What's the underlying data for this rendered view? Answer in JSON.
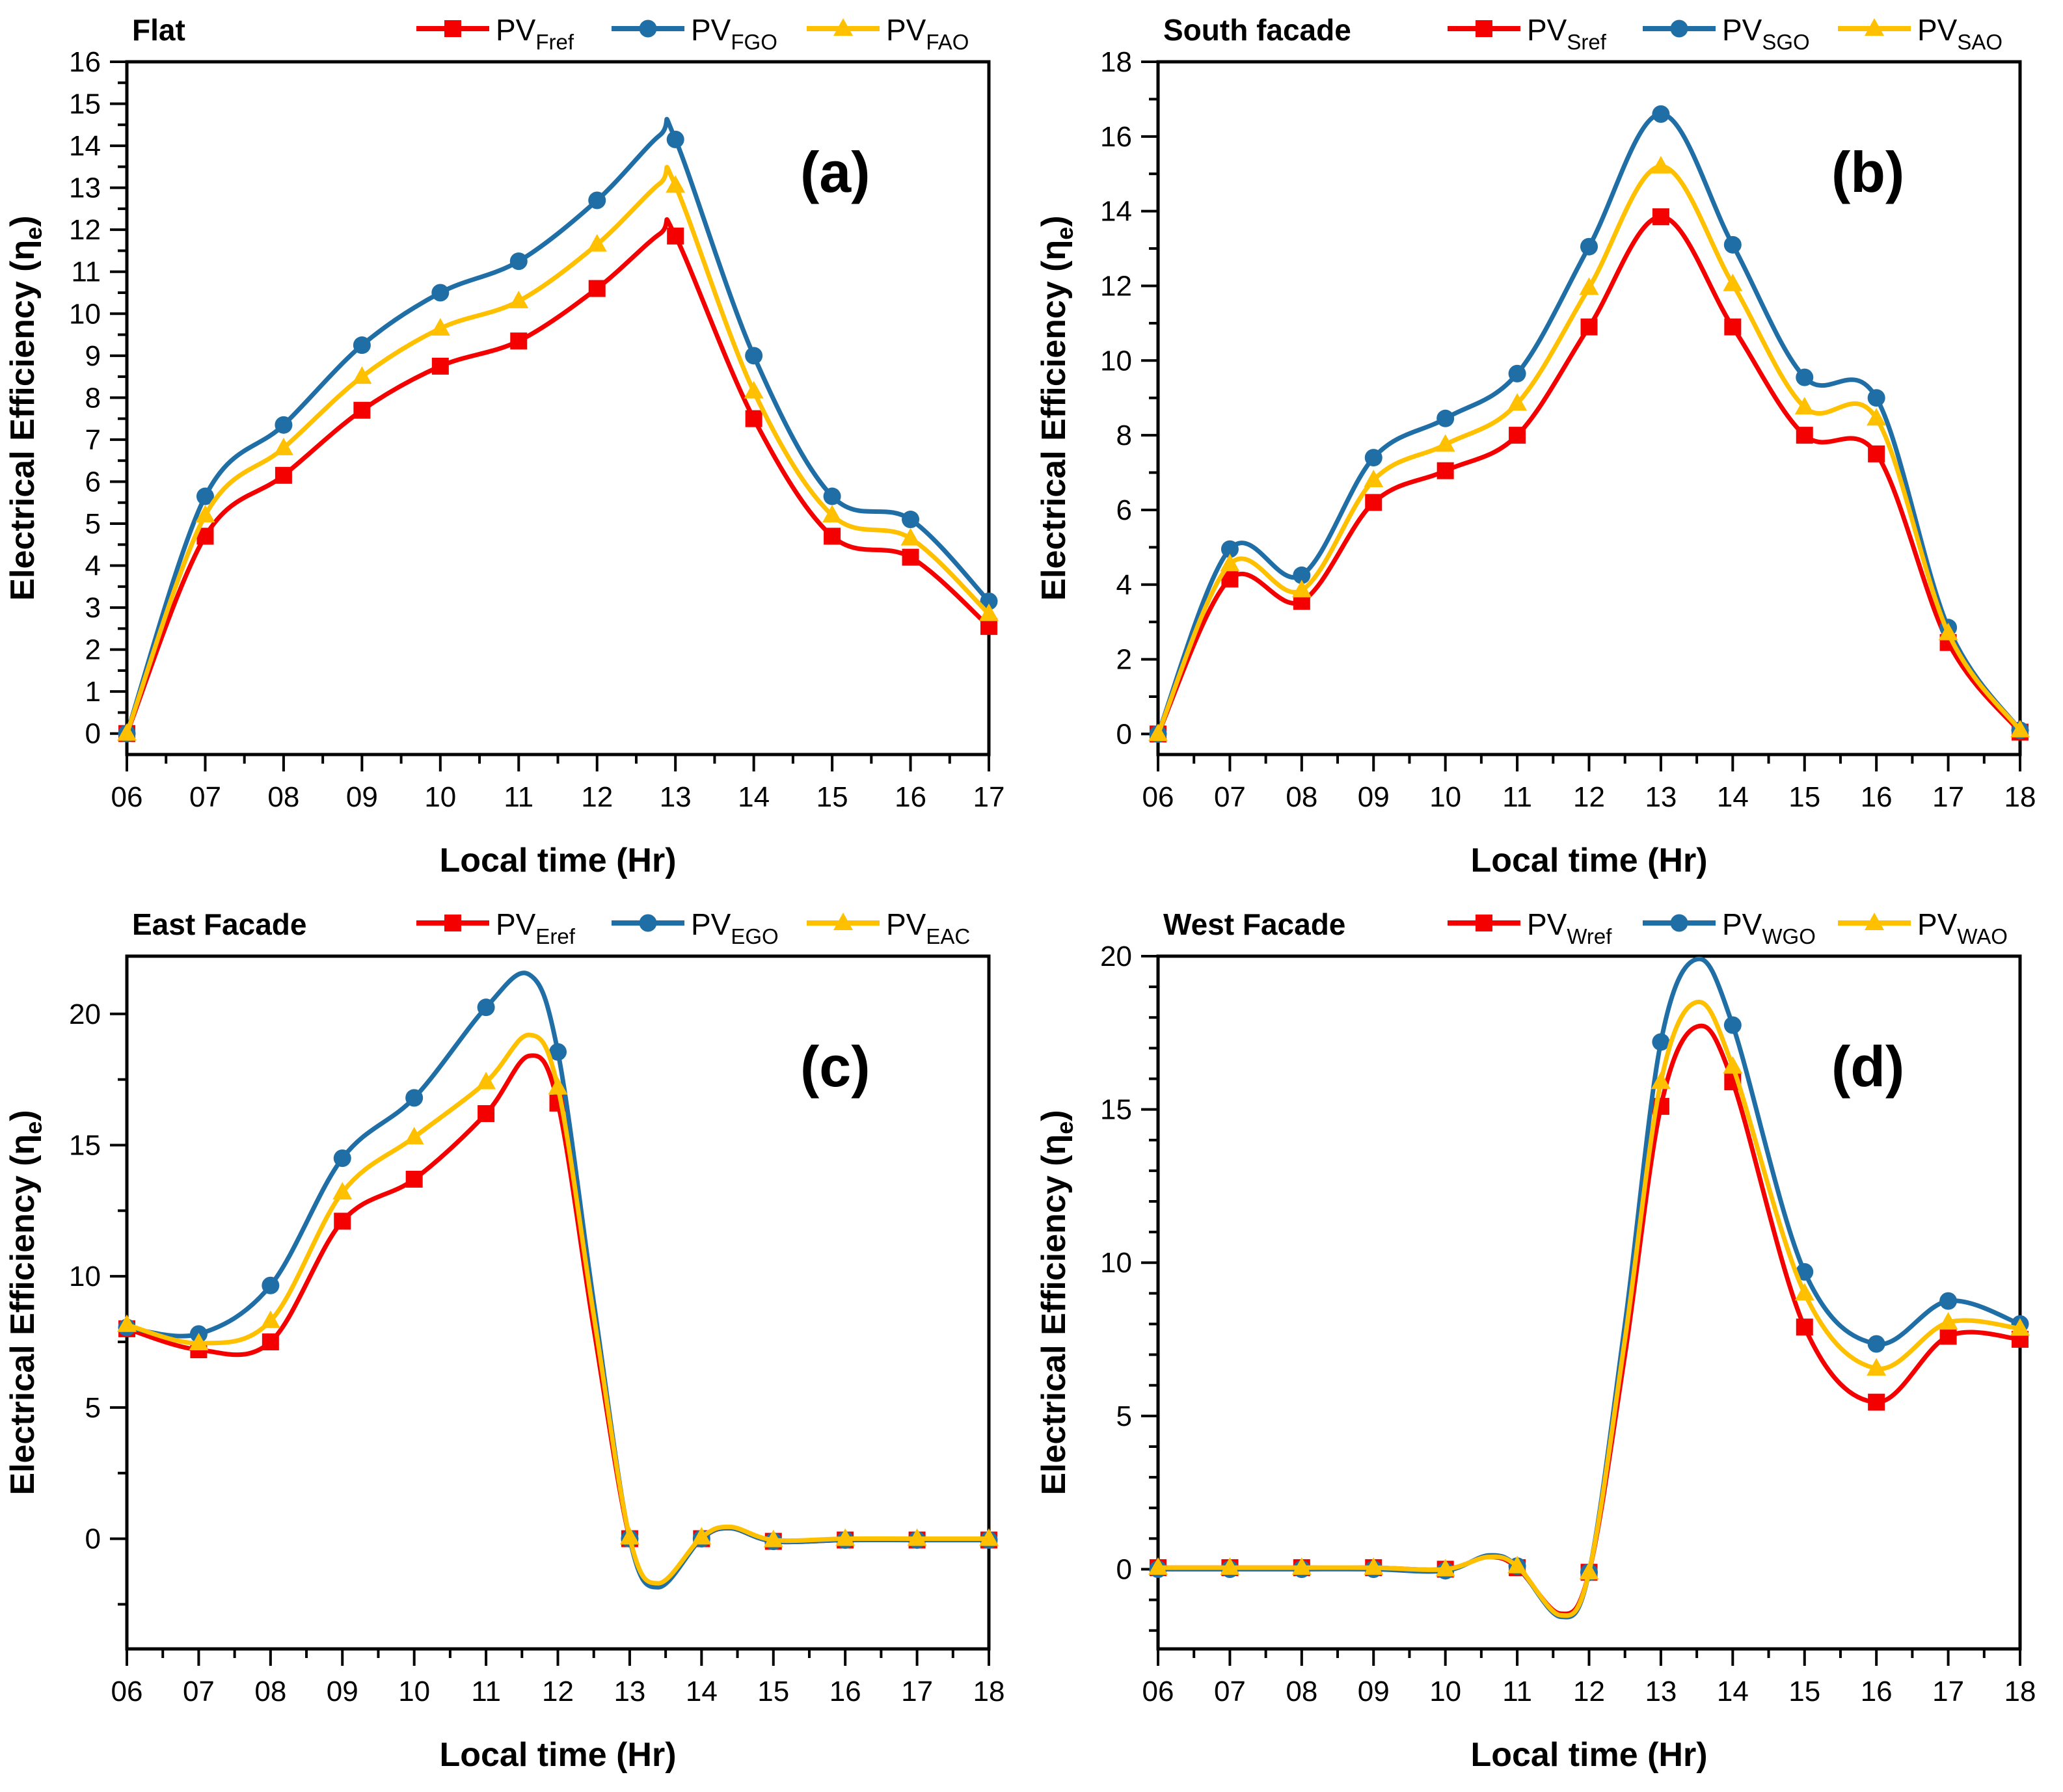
{
  "figure": {
    "background": "#ffffff",
    "colors": {
      "ref": "#F40000",
      "go": "#1F6EA5",
      "ao": "#FFC000",
      "axis": "#000000",
      "text": "#000000"
    }
  },
  "chart_data": [
    {
      "type": "line",
      "panel_label": "(a)",
      "title": "Flat",
      "xlabel": "Local time (Hr)",
      "ylabel_main": "Electrical Efficiency (η",
      "ylabel_sub": "e",
      "ylabel_close": ")",
      "xlim": [
        6,
        17
      ],
      "x_ticks": [
        6,
        7,
        8,
        9,
        10,
        11,
        12,
        13,
        14,
        15,
        16,
        17
      ],
      "x_tick_labels": [
        "06",
        "07",
        "08",
        "09",
        "10",
        "11",
        "12",
        "13",
        "14",
        "15",
        "16",
        "17"
      ],
      "x_minor_step": 0.5,
      "ylim": [
        0,
        16
      ],
      "y_draw": [
        -0.5,
        16
      ],
      "y_ticks": [
        0,
        1,
        2,
        3,
        4,
        5,
        6,
        7,
        8,
        9,
        10,
        11,
        12,
        13,
        14,
        15,
        16
      ],
      "y_minor_step": 0.5,
      "grid": false,
      "legend_position": "top",
      "series": [
        {
          "name": "PV_Fref",
          "legend_main": "PV",
          "legend_sub": "Fref",
          "color": "ref",
          "marker": "square",
          "x": [
            6,
            7,
            8,
            9,
            10,
            11,
            12,
            12.8,
            13,
            14,
            15,
            16,
            17
          ],
          "y": [
            0,
            4.7,
            6.15,
            7.7,
            8.75,
            9.35,
            10.6,
            11.9,
            11.85,
            7.5,
            4.7,
            4.2,
            2.55
          ]
        },
        {
          "name": "PV_FGO",
          "legend_main": "PV",
          "legend_sub": "FGO",
          "color": "go",
          "marker": "circle",
          "x": [
            6,
            7,
            8,
            9,
            10,
            11,
            12,
            12.8,
            13,
            14,
            15,
            16,
            17
          ],
          "y": [
            0,
            5.65,
            7.35,
            9.25,
            10.5,
            11.25,
            12.7,
            14.25,
            14.15,
            9.0,
            5.65,
            5.1,
            3.15
          ]
        },
        {
          "name": "PV_FAO",
          "legend_main": "PV",
          "legend_sub": "FAO",
          "color": "ao",
          "marker": "triangle",
          "x": [
            6,
            7,
            8,
            9,
            10,
            11,
            12,
            12.8,
            13,
            14,
            15,
            16,
            17
          ],
          "y": [
            0,
            5.2,
            6.8,
            8.5,
            9.65,
            10.3,
            11.65,
            13.1,
            13.05,
            8.15,
            5.2,
            4.65,
            2.85
          ]
        }
      ]
    },
    {
      "type": "line",
      "panel_label": "(b)",
      "title": "South facade",
      "xlabel": "Local time (Hr)",
      "ylabel_main": "Electrical Efficiency (η",
      "ylabel_sub": "e",
      "ylabel_close": ")",
      "xlim": [
        6,
        18
      ],
      "x_ticks": [
        6,
        7,
        8,
        9,
        10,
        11,
        12,
        13,
        14,
        15,
        16,
        17,
        18
      ],
      "x_tick_labels": [
        "06",
        "07",
        "08",
        "09",
        "10",
        "11",
        "12",
        "13",
        "14",
        "15",
        "16",
        "17",
        "18"
      ],
      "x_minor_step": 0.5,
      "ylim": [
        0,
        18
      ],
      "y_draw": [
        -0.55,
        18
      ],
      "y_ticks": [
        0,
        2,
        4,
        6,
        8,
        10,
        12,
        14,
        16,
        18
      ],
      "y_minor_step": 1,
      "grid": false,
      "legend_position": "top",
      "series": [
        {
          "name": "PV_Sref",
          "legend_main": "PV",
          "legend_sub": "Sref",
          "color": "ref",
          "marker": "square",
          "x": [
            6,
            7,
            8,
            9,
            10,
            11,
            12,
            13,
            14,
            15,
            16,
            17,
            18
          ],
          "y": [
            0,
            4.15,
            3.55,
            6.2,
            7.05,
            8.0,
            10.9,
            13.85,
            10.9,
            8.0,
            7.5,
            2.45,
            0.05
          ]
        },
        {
          "name": "PV_SGO",
          "legend_main": "PV",
          "legend_sub": "SGO",
          "color": "go",
          "marker": "circle",
          "x": [
            6,
            7,
            8,
            9,
            10,
            11,
            12,
            13,
            14,
            15,
            16,
            17,
            18
          ],
          "y": [
            0,
            4.95,
            4.25,
            7.4,
            8.45,
            9.65,
            13.05,
            16.6,
            13.1,
            9.55,
            9.0,
            2.85,
            0.1
          ]
        },
        {
          "name": "PV_SAO",
          "legend_main": "PV",
          "legend_sub": "SAO",
          "color": "ao",
          "marker": "triangle",
          "x": [
            6,
            7,
            8,
            9,
            10,
            11,
            12,
            13,
            14,
            15,
            16,
            17,
            18
          ],
          "y": [
            0,
            4.55,
            3.85,
            6.8,
            7.75,
            8.85,
            11.95,
            15.2,
            12.05,
            8.75,
            8.45,
            2.7,
            0.1
          ]
        }
      ]
    },
    {
      "type": "line",
      "panel_label": "(c)",
      "title": "East Facade",
      "xlabel": "Local time (Hr)",
      "ylabel_main": "Electrical Efficiency (η",
      "ylabel_sub": "e",
      "ylabel_close": ")",
      "xlim": [
        6,
        18
      ],
      "x_ticks": [
        6,
        7,
        8,
        9,
        10,
        11,
        12,
        13,
        14,
        15,
        16,
        17,
        18
      ],
      "x_tick_labels": [
        "06",
        "07",
        "08",
        "09",
        "10",
        "11",
        "12",
        "13",
        "14",
        "15",
        "16",
        "17",
        "18"
      ],
      "x_minor_step": 0.5,
      "ylim": [
        -2.5,
        22
      ],
      "y_draw": [
        -4.2,
        22.2
      ],
      "y_ticks": [
        0,
        5,
        10,
        15,
        20
      ],
      "y_minor_step": 2.5,
      "grid": false,
      "legend_position": "top",
      "series": [
        {
          "name": "PV_Eref",
          "legend_main": "PV",
          "legend_sub": "Eref",
          "color": "ref",
          "marker": "square",
          "x": [
            6,
            7,
            8,
            9,
            10,
            11,
            11.6,
            12,
            12.5,
            13,
            13.4,
            14,
            14.4,
            15,
            16,
            17,
            18
          ],
          "y": [
            8.0,
            7.2,
            7.5,
            12.1,
            13.7,
            16.2,
            18.4,
            16.6,
            8.0,
            0.0,
            -1.75,
            0.0,
            0.4,
            -0.1,
            -0.05,
            -0.05,
            -0.05
          ]
        },
        {
          "name": "PV_EGO",
          "legend_main": "PV",
          "legend_sub": "EGO",
          "color": "go",
          "marker": "circle",
          "x": [
            6,
            7,
            8,
            9,
            10,
            11,
            11.6,
            12,
            12.5,
            13,
            13.4,
            14,
            14.4,
            15,
            16,
            17,
            18
          ],
          "y": [
            8.05,
            7.8,
            9.65,
            14.5,
            16.8,
            20.25,
            21.5,
            18.55,
            9.0,
            0.0,
            -1.85,
            0.0,
            0.4,
            -0.1,
            -0.05,
            -0.05,
            -0.05
          ]
        },
        {
          "name": "PV_EAC",
          "legend_main": "PV",
          "legend_sub": "EAC",
          "color": "ao",
          "marker": "triangle",
          "x": [
            6,
            7,
            8,
            9,
            10,
            11,
            11.6,
            12,
            12.5,
            13,
            13.4,
            14,
            14.4,
            15,
            16,
            17,
            18
          ],
          "y": [
            8.15,
            7.45,
            8.3,
            13.2,
            15.3,
            17.4,
            19.2,
            17.2,
            8.5,
            0.05,
            -1.7,
            0.05,
            0.45,
            -0.05,
            0.0,
            0.0,
            0.0
          ]
        }
      ]
    },
    {
      "type": "line",
      "panel_label": "(d)",
      "title": "West Facade",
      "xlabel": "Local time (Hr)",
      "ylabel_main": "Electrical Efficiency (η",
      "ylabel_sub": "e",
      "ylabel_close": ")",
      "xlim": [
        6,
        18
      ],
      "x_ticks": [
        6,
        7,
        8,
        9,
        10,
        11,
        12,
        13,
        14,
        15,
        16,
        17,
        18
      ],
      "x_tick_labels": [
        "06",
        "07",
        "08",
        "09",
        "10",
        "11",
        "12",
        "13",
        "14",
        "15",
        "16",
        "17",
        "18"
      ],
      "x_minor_step": 0.5,
      "ylim": [
        -2.5,
        20
      ],
      "y_draw": [
        -2.6,
        20
      ],
      "y_ticks": [
        0,
        5,
        10,
        15,
        20
      ],
      "y_minor_step": 1,
      "grid": false,
      "legend_position": "top",
      "series": [
        {
          "name": "PV_Wref",
          "legend_main": "PV",
          "legend_sub": "Wref",
          "color": "ref",
          "marker": "square",
          "x": [
            6,
            7,
            8,
            9,
            10,
            10.6,
            11,
            11.6,
            12,
            12.5,
            13,
            13.5,
            14,
            15,
            16,
            17,
            18
          ],
          "y": [
            0.05,
            0.05,
            0.05,
            0.05,
            0.0,
            0.4,
            0.05,
            -1.45,
            -0.1,
            7.0,
            15.1,
            17.7,
            15.9,
            7.9,
            5.45,
            7.6,
            7.5
          ]
        },
        {
          "name": "PV_WGO",
          "legend_main": "PV",
          "legend_sub": "WGO",
          "color": "go",
          "marker": "circle",
          "x": [
            6,
            7,
            8,
            9,
            10,
            10.6,
            11,
            11.6,
            12,
            12.5,
            13,
            13.5,
            14,
            15,
            16,
            17,
            18
          ],
          "y": [
            0.0,
            0.0,
            0.0,
            0.0,
            -0.05,
            0.45,
            0.1,
            -1.55,
            -0.1,
            8.0,
            17.2,
            19.9,
            17.75,
            9.7,
            7.35,
            8.75,
            8.0
          ]
        },
        {
          "name": "PV_WAO",
          "legend_main": "PV",
          "legend_sub": "WAO",
          "color": "ao",
          "marker": "triangle",
          "x": [
            6,
            7,
            8,
            9,
            10,
            10.6,
            11,
            11.6,
            12,
            12.5,
            13,
            13.5,
            14,
            15,
            16,
            17,
            18
          ],
          "y": [
            0.05,
            0.05,
            0.05,
            0.05,
            0.0,
            0.4,
            0.1,
            -1.5,
            -0.1,
            7.5,
            15.9,
            18.5,
            16.4,
            9.0,
            6.55,
            8.05,
            7.85
          ]
        }
      ]
    }
  ]
}
